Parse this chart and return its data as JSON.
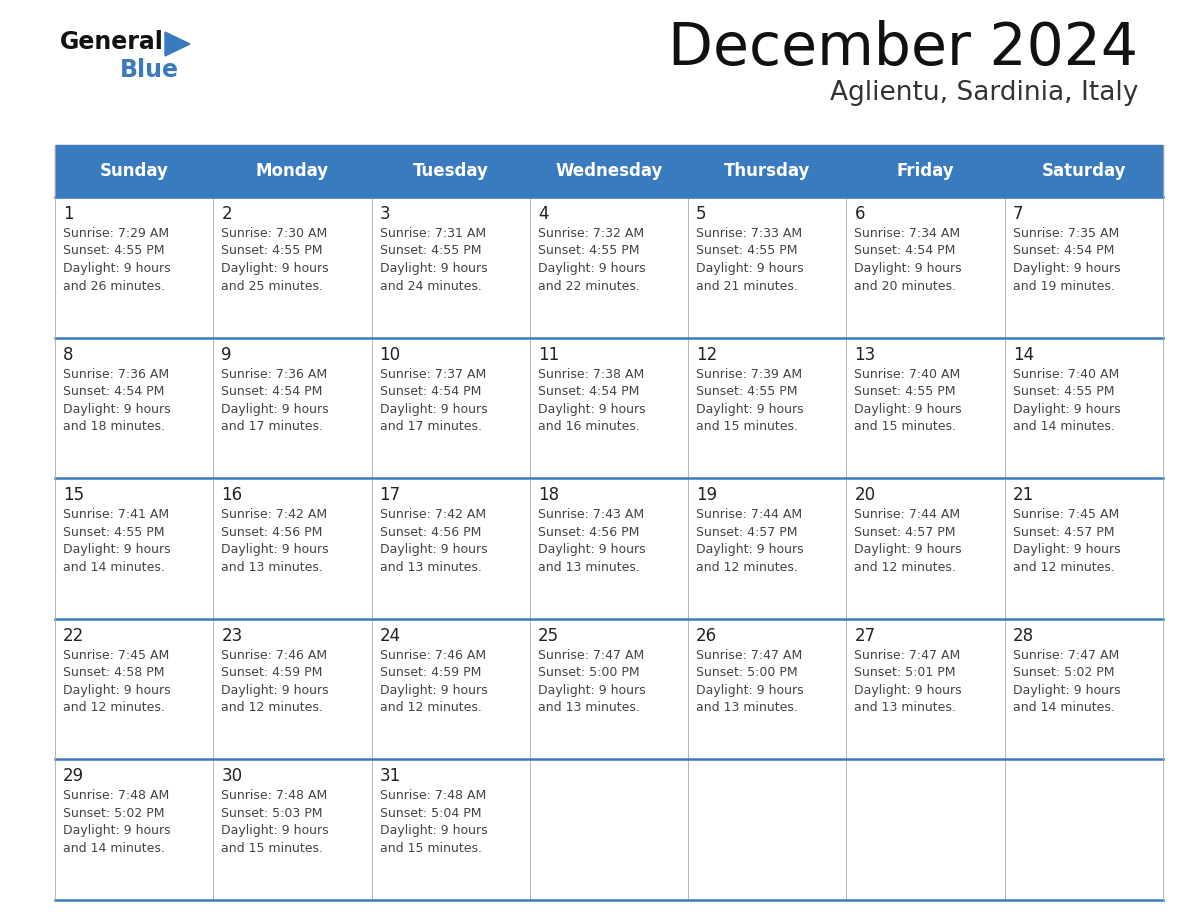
{
  "title": "December 2024",
  "subtitle": "Aglientu, Sardinia, Italy",
  "days_of_week": [
    "Sunday",
    "Monday",
    "Tuesday",
    "Wednesday",
    "Thursday",
    "Friday",
    "Saturday"
  ],
  "header_bg_color": "#3a7abf",
  "header_text_color": "#ffffff",
  "cell_bg_color": "#ffffff",
  "divider_color": "#3a7abf",
  "thin_line_color": "#aaaaaa",
  "cell_text_color": "#444444",
  "day_num_color": "#222222",
  "title_color": "#111111",
  "subtitle_color": "#333333",
  "calendar_data": [
    [
      {
        "day": "1",
        "sunrise": "7:29 AM",
        "sunset": "4:55 PM",
        "daylight": "9 hours",
        "daylight2": "and 26 minutes."
      },
      {
        "day": "2",
        "sunrise": "7:30 AM",
        "sunset": "4:55 PM",
        "daylight": "9 hours",
        "daylight2": "and 25 minutes."
      },
      {
        "day": "3",
        "sunrise": "7:31 AM",
        "sunset": "4:55 PM",
        "daylight": "9 hours",
        "daylight2": "and 24 minutes."
      },
      {
        "day": "4",
        "sunrise": "7:32 AM",
        "sunset": "4:55 PM",
        "daylight": "9 hours",
        "daylight2": "and 22 minutes."
      },
      {
        "day": "5",
        "sunrise": "7:33 AM",
        "sunset": "4:55 PM",
        "daylight": "9 hours",
        "daylight2": "and 21 minutes."
      },
      {
        "day": "6",
        "sunrise": "7:34 AM",
        "sunset": "4:54 PM",
        "daylight": "9 hours",
        "daylight2": "and 20 minutes."
      },
      {
        "day": "7",
        "sunrise": "7:35 AM",
        "sunset": "4:54 PM",
        "daylight": "9 hours",
        "daylight2": "and 19 minutes."
      }
    ],
    [
      {
        "day": "8",
        "sunrise": "7:36 AM",
        "sunset": "4:54 PM",
        "daylight": "9 hours",
        "daylight2": "and 18 minutes."
      },
      {
        "day": "9",
        "sunrise": "7:36 AM",
        "sunset": "4:54 PM",
        "daylight": "9 hours",
        "daylight2": "and 17 minutes."
      },
      {
        "day": "10",
        "sunrise": "7:37 AM",
        "sunset": "4:54 PM",
        "daylight": "9 hours",
        "daylight2": "and 17 minutes."
      },
      {
        "day": "11",
        "sunrise": "7:38 AM",
        "sunset": "4:54 PM",
        "daylight": "9 hours",
        "daylight2": "and 16 minutes."
      },
      {
        "day": "12",
        "sunrise": "7:39 AM",
        "sunset": "4:55 PM",
        "daylight": "9 hours",
        "daylight2": "and 15 minutes."
      },
      {
        "day": "13",
        "sunrise": "7:40 AM",
        "sunset": "4:55 PM",
        "daylight": "9 hours",
        "daylight2": "and 15 minutes."
      },
      {
        "day": "14",
        "sunrise": "7:40 AM",
        "sunset": "4:55 PM",
        "daylight": "9 hours",
        "daylight2": "and 14 minutes."
      }
    ],
    [
      {
        "day": "15",
        "sunrise": "7:41 AM",
        "sunset": "4:55 PM",
        "daylight": "9 hours",
        "daylight2": "and 14 minutes."
      },
      {
        "day": "16",
        "sunrise": "7:42 AM",
        "sunset": "4:56 PM",
        "daylight": "9 hours",
        "daylight2": "and 13 minutes."
      },
      {
        "day": "17",
        "sunrise": "7:42 AM",
        "sunset": "4:56 PM",
        "daylight": "9 hours",
        "daylight2": "and 13 minutes."
      },
      {
        "day": "18",
        "sunrise": "7:43 AM",
        "sunset": "4:56 PM",
        "daylight": "9 hours",
        "daylight2": "and 13 minutes."
      },
      {
        "day": "19",
        "sunrise": "7:44 AM",
        "sunset": "4:57 PM",
        "daylight": "9 hours",
        "daylight2": "and 12 minutes."
      },
      {
        "day": "20",
        "sunrise": "7:44 AM",
        "sunset": "4:57 PM",
        "daylight": "9 hours",
        "daylight2": "and 12 minutes."
      },
      {
        "day": "21",
        "sunrise": "7:45 AM",
        "sunset": "4:57 PM",
        "daylight": "9 hours",
        "daylight2": "and 12 minutes."
      }
    ],
    [
      {
        "day": "22",
        "sunrise": "7:45 AM",
        "sunset": "4:58 PM",
        "daylight": "9 hours",
        "daylight2": "and 12 minutes."
      },
      {
        "day": "23",
        "sunrise": "7:46 AM",
        "sunset": "4:59 PM",
        "daylight": "9 hours",
        "daylight2": "and 12 minutes."
      },
      {
        "day": "24",
        "sunrise": "7:46 AM",
        "sunset": "4:59 PM",
        "daylight": "9 hours",
        "daylight2": "and 12 minutes."
      },
      {
        "day": "25",
        "sunrise": "7:47 AM",
        "sunset": "5:00 PM",
        "daylight": "9 hours",
        "daylight2": "and 13 minutes."
      },
      {
        "day": "26",
        "sunrise": "7:47 AM",
        "sunset": "5:00 PM",
        "daylight": "9 hours",
        "daylight2": "and 13 minutes."
      },
      {
        "day": "27",
        "sunrise": "7:47 AM",
        "sunset": "5:01 PM",
        "daylight": "9 hours",
        "daylight2": "and 13 minutes."
      },
      {
        "day": "28",
        "sunrise": "7:47 AM",
        "sunset": "5:02 PM",
        "daylight": "9 hours",
        "daylight2": "and 14 minutes."
      }
    ],
    [
      {
        "day": "29",
        "sunrise": "7:48 AM",
        "sunset": "5:02 PM",
        "daylight": "9 hours",
        "daylight2": "and 14 minutes."
      },
      {
        "day": "30",
        "sunrise": "7:48 AM",
        "sunset": "5:03 PM",
        "daylight": "9 hours",
        "daylight2": "and 15 minutes."
      },
      {
        "day": "31",
        "sunrise": "7:48 AM",
        "sunset": "5:04 PM",
        "daylight": "9 hours",
        "daylight2": "and 15 minutes."
      },
      null,
      null,
      null,
      null
    ]
  ]
}
